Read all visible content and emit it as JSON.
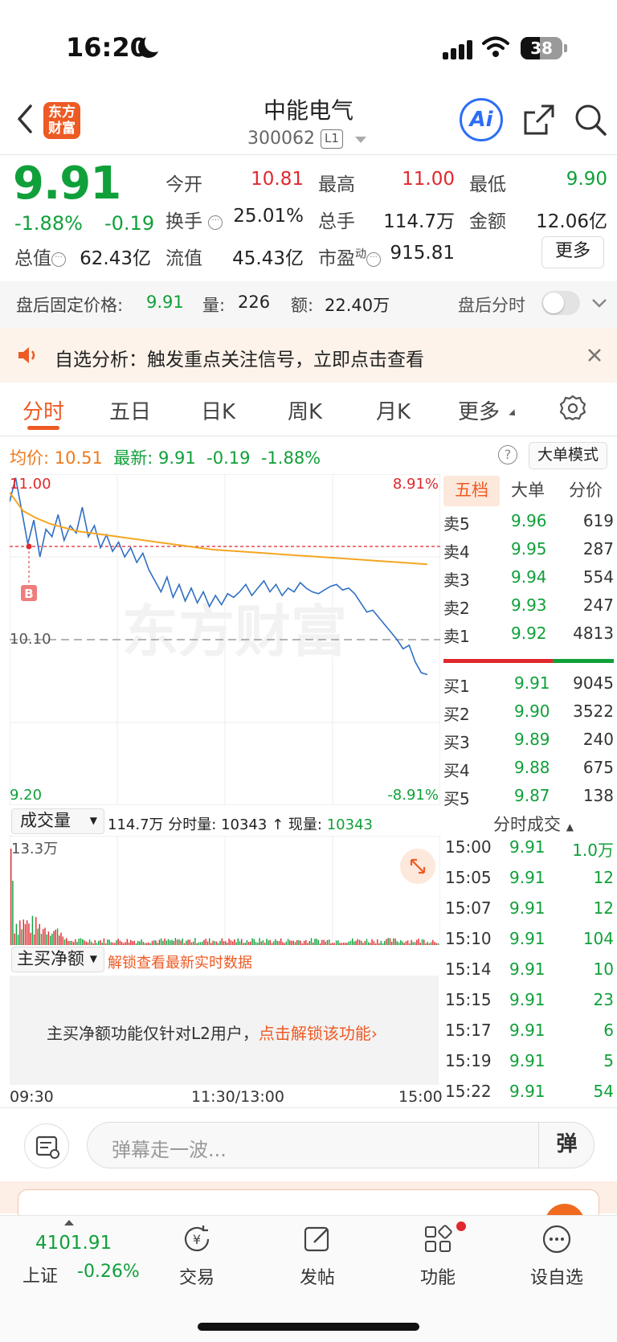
{
  "status_bar": {
    "time": "16:20",
    "battery": "38"
  },
  "header": {
    "logo_text": "东方财富",
    "stock_name": "中能电气",
    "stock_code": "300062",
    "level_badge": "L1",
    "ai_label": "Ai"
  },
  "quote": {
    "price": "9.91",
    "change_pct": "-1.88%",
    "change": "-0.19",
    "open_label": "今开",
    "open": "10.81",
    "high_label": "最高",
    "high": "11.00",
    "low_label": "最低",
    "low": "9.90",
    "turnover_label": "换手",
    "turnover": "25.01%",
    "volume_label": "总手",
    "volume": "114.7万",
    "amount_label": "金额",
    "amount": "12.06亿",
    "mktcap_label": "总值",
    "mktcap": "62.43亿",
    "float_label": "流值",
    "float": "45.43亿",
    "pe_label": "市盈",
    "pe_sup": "动",
    "pe": "915.81",
    "more_label": "更多"
  },
  "after_hours": {
    "price_label": "盘后固定价格:",
    "price": "9.91",
    "qty_label": "量:",
    "qty": "226",
    "amt_label": "额:",
    "amt": "22.40万",
    "toggle_label": "盘后分时"
  },
  "notice": {
    "text": "自选分析：触发重点关注信号，立即点击查看"
  },
  "tabs": [
    "分时",
    "五日",
    "日K",
    "周K",
    "月K",
    "更多"
  ],
  "chart_info": {
    "avg_label": "均价:",
    "avg": "10.51",
    "last_label": "最新:",
    "last": "9.91",
    "chg": "-0.19",
    "chg_pct": "-1.88%",
    "big_order_btn": "大单模式"
  },
  "chart_axis": {
    "y_top": "11.00",
    "y_mid": "10.10",
    "y_bottom": "9.20",
    "pct_top": "8.91%",
    "pct_bottom": "-8.91%",
    "watermark": "东方财富",
    "marker": "B"
  },
  "volume_panel": {
    "select_label": "成交量",
    "total": "114.7万",
    "minute_label": "分时量:",
    "minute": "10343",
    "arrow": "↑",
    "now_label": "现量:",
    "now": "10343",
    "max_label": "13.3万"
  },
  "netbuy_panel": {
    "select_label": "主买净额",
    "unlock_link": "解锁查看最新实时数据",
    "msg": "主买净额功能仅针对L2用户，",
    "msg_link": "点击解锁该功能"
  },
  "time_axis": {
    "start": "09:30",
    "mid": "11:30/13:00",
    "end": "15:00"
  },
  "order_book": {
    "tabs": [
      "五档",
      "大单",
      "分价"
    ],
    "asks": [
      {
        "label": "卖5",
        "price": "9.96",
        "vol": "619"
      },
      {
        "label": "卖4",
        "price": "9.95",
        "vol": "287"
      },
      {
        "label": "卖3",
        "price": "9.94",
        "vol": "554"
      },
      {
        "label": "卖2",
        "price": "9.93",
        "vol": "247"
      },
      {
        "label": "卖1",
        "price": "9.92",
        "vol": "4813"
      }
    ],
    "bids": [
      {
        "label": "买1",
        "price": "9.91",
        "vol": "9045"
      },
      {
        "label": "买2",
        "price": "9.90",
        "vol": "3522"
      },
      {
        "label": "买3",
        "price": "9.89",
        "vol": "240"
      },
      {
        "label": "买4",
        "price": "9.88",
        "vol": "675"
      },
      {
        "label": "买5",
        "price": "9.87",
        "vol": "138"
      }
    ],
    "ask_ratio": 0.64
  },
  "ticks": {
    "title": "分时成交",
    "rows": [
      {
        "time": "15:00",
        "price": "9.91",
        "vol": "1.0万"
      },
      {
        "time": "15:05",
        "price": "9.91",
        "vol": "12"
      },
      {
        "time": "15:07",
        "price": "9.91",
        "vol": "12"
      },
      {
        "time": "15:10",
        "price": "9.91",
        "vol": "104"
      },
      {
        "time": "15:14",
        "price": "9.91",
        "vol": "10"
      },
      {
        "time": "15:15",
        "price": "9.91",
        "vol": "23"
      },
      {
        "time": "15:17",
        "price": "9.91",
        "vol": "6"
      },
      {
        "time": "15:19",
        "price": "9.91",
        "vol": "5"
      },
      {
        "time": "15:22",
        "price": "9.91",
        "vol": "54"
      }
    ]
  },
  "comment_bar": {
    "placeholder": "弹幕走一波...",
    "danmu_btn": "弹"
  },
  "bottom_nav": {
    "index_value": "4101.91",
    "index_name": "上证",
    "index_chg": "-0.26%",
    "items": [
      "交易",
      "发帖",
      "功能",
      "设自选"
    ]
  },
  "colors": {
    "up": "#e0282e",
    "down": "#10a03a",
    "accent": "#ee5a24",
    "price_line": "#2f6fc4",
    "avg_line": "#f5a623"
  },
  "chart_data": {
    "type": "line",
    "x_range": [
      "09:30",
      "15:00"
    ],
    "ylim": [
      9.2,
      11.0
    ],
    "series": [
      {
        "name": "",
        "values": [
          10.85,
          10.98,
          10.8,
          10.62,
          10.75,
          10.55,
          10.7,
          10.66,
          10.78,
          10.64,
          10.72,
          10.68,
          10.82,
          10.66,
          10.72,
          10.6,
          10.67,
          10.58,
          10.63,
          10.55,
          10.6,
          10.52,
          10.57,
          10.48,
          10.42,
          10.36,
          10.44,
          10.33,
          10.4,
          10.31,
          10.38,
          10.3,
          10.36,
          10.28,
          10.34,
          10.29,
          10.35,
          10.33,
          10.36,
          10.4,
          10.34,
          10.38,
          10.42,
          10.36,
          10.4,
          10.34,
          10.38,
          10.36,
          10.41,
          10.38,
          10.36,
          10.35,
          10.37,
          10.39,
          10.4,
          10.37,
          10.38,
          10.35,
          10.3,
          10.25,
          10.26,
          10.22,
          10.18,
          10.14,
          10.1,
          10.05,
          10.07,
          9.98,
          9.92,
          9.91
        ]
      },
      {
        "name": "",
        "values": [
          10.9,
          10.8,
          10.76,
          10.73,
          10.71,
          10.69,
          10.68,
          10.67,
          10.66,
          10.65,
          10.64,
          10.63,
          10.62,
          10.61,
          10.6,
          10.59,
          10.585,
          10.58,
          10.575,
          10.57,
          10.565,
          10.56,
          10.555,
          10.55,
          10.545,
          10.54,
          10.535,
          10.53,
          10.525,
          10.52,
          10.515,
          10.51
        ]
      }
    ],
    "reference_lines": {
      "prev_close": 10.1,
      "current": 10.62
    },
    "volume_max": "13.3万"
  }
}
